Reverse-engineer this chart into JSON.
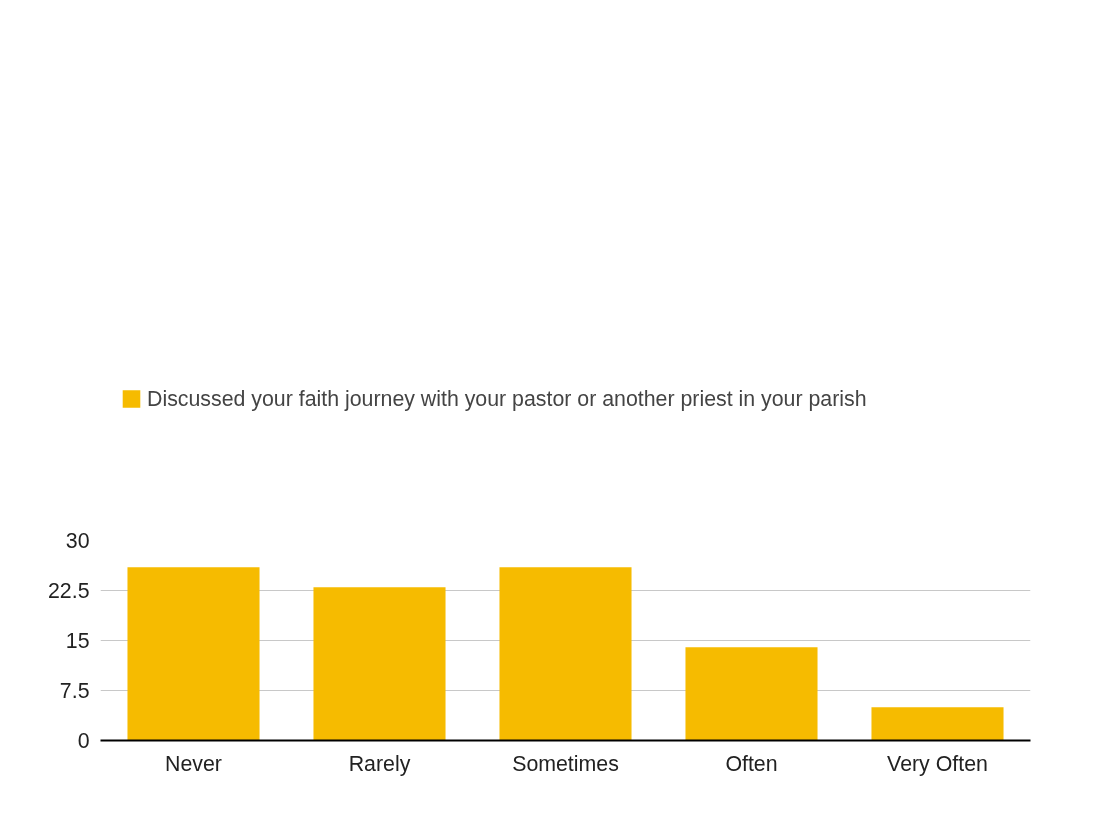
{
  "chart_data": {
    "type": "bar",
    "categories": [
      "Never",
      "Rarely",
      "Sometimes",
      "Often",
      "Very Often"
    ],
    "series": [
      {
        "name": "Discussed your faith journey with your pastor or another priest in your parish",
        "color": "#f6bb00",
        "values": [
          26,
          23,
          26,
          14,
          5
        ]
      }
    ],
    "ylim": [
      0,
      30
    ],
    "yticks": [
      0,
      7.5,
      15,
      22.5,
      30
    ],
    "grid": "y",
    "legend": "top left"
  }
}
